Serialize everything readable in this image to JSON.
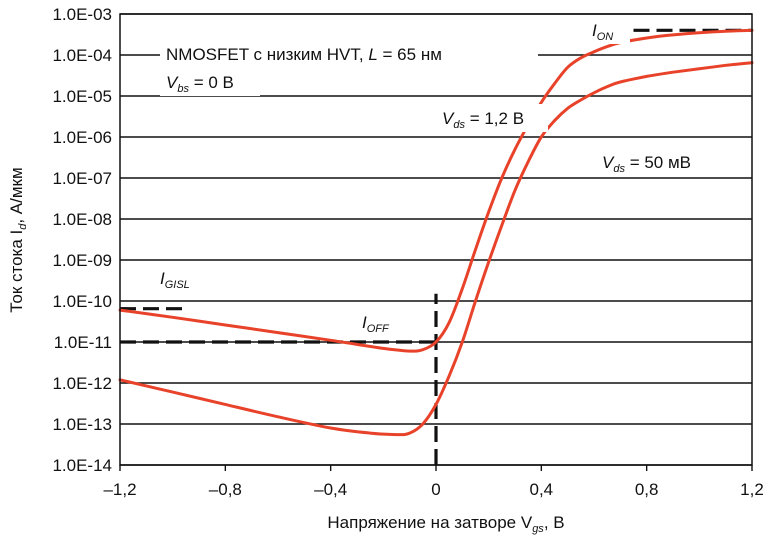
{
  "chart_data": {
    "type": "line",
    "y_scale": "log",
    "xlabel_main": "Напряжение на затворе V",
    "xlabel_sub": "gs",
    "xlabel_tail": ", В",
    "ylabel_main": "Ток стока I",
    "ylabel_sub": "d",
    "ylabel_tail": ", А/мкм",
    "xlim": [
      -1.2,
      1.2
    ],
    "ylim": [
      1e-14,
      0.001
    ],
    "x_ticks": [
      -1.2,
      -0.8,
      -0.4,
      0,
      0.4,
      0.8,
      1.2
    ],
    "x_tick_labels": [
      "–1,2",
      "–0,8",
      "–0,4",
      "0",
      "0,4",
      "0,8",
      "1,2"
    ],
    "y_ticks": [
      0.001,
      0.0001,
      1e-05,
      1e-06,
      1e-07,
      1e-08,
      1e-09,
      1e-10,
      1e-11,
      1e-12,
      1e-13,
      1e-14
    ],
    "y_tick_labels": [
      "1.0E-03",
      "1.0E-04",
      "1.0E-05",
      "1.0E-06",
      "1.0E-07",
      "1.0E-08",
      "1.0E-09",
      "1.0E-10",
      "1.0E-11",
      "1.0E-12",
      "1.0E-13",
      "1.0E-14"
    ],
    "grid": "horizontal",
    "series_color": "#e8432a",
    "series": [
      {
        "name": "Vds = 1,2 В",
        "x": [
          -1.2,
          -1.0,
          -0.8,
          -0.6,
          -0.4,
          -0.2,
          -0.1,
          -0.05,
          0.0,
          0.05,
          0.1,
          0.15,
          0.2,
          0.25,
          0.3,
          0.35,
          0.4,
          0.45,
          0.5,
          0.55,
          0.6,
          0.65,
          0.7,
          0.8,
          0.9,
          1.0,
          1.1,
          1.2
        ],
        "y": [
          6e-11,
          4e-11,
          2.6e-11,
          1.7e-11,
          1.1e-11,
          7e-12,
          6e-12,
          6.5e-12,
          1e-11,
          3e-11,
          2e-10,
          1.8e-09,
          1.5e-08,
          1e-07,
          5e-07,
          2e-06,
          7e-06,
          2e-05,
          5e-05,
          8.5e-05,
          0.00012,
          0.00016,
          0.0002,
          0.00026,
          0.00031,
          0.00035,
          0.00038,
          0.0004
        ]
      },
      {
        "name": "Vds = 50 мВ",
        "x": [
          -1.2,
          -1.0,
          -0.8,
          -0.6,
          -0.4,
          -0.25,
          -0.15,
          -0.1,
          -0.05,
          0.0,
          0.05,
          0.1,
          0.15,
          0.2,
          0.25,
          0.3,
          0.35,
          0.4,
          0.45,
          0.5,
          0.55,
          0.6,
          0.65,
          0.7,
          0.8,
          0.9,
          1.0,
          1.1,
          1.2
        ],
        "y": [
          1.2e-12,
          6e-13,
          3e-13,
          1.5e-13,
          8e-14,
          6e-14,
          5.5e-14,
          6e-14,
          1e-13,
          3e-13,
          1.5e-12,
          1e-11,
          1e-10,
          9e-10,
          7e-09,
          5e-08,
          2.5e-07,
          1e-06,
          2.5e-06,
          5e-06,
          8e-06,
          1.2e-05,
          1.7e-05,
          2.2e-05,
          3e-05,
          3.8e-05,
          4.6e-05,
          5.6e-05,
          6.5e-05
        ]
      }
    ],
    "reference_lines": [
      {
        "id": "ion",
        "y": 0.0004,
        "x_from": 0.75,
        "x_to": 1.2
      },
      {
        "id": "ioff",
        "y": 1e-11,
        "x_from": -1.2,
        "x_to": 0.0
      },
      {
        "id": "igisl",
        "y": 6.5e-11,
        "x_from": -1.2,
        "x_to": -0.95
      },
      {
        "id": "vzero",
        "x": 0.0,
        "y_from": 1e-14,
        "y_to": 1.5e-10
      }
    ],
    "annotations": {
      "device_line": "NMOSFET с низким HVT, ",
      "device_L": "L",
      "device_tail": " = 65 нм",
      "vbs_main": "V",
      "vbs_sub": "bs",
      "vbs_tail": " = 0 В",
      "vds1_main": "V",
      "vds1_sub": "ds",
      "vds1_tail": " = 1,2 В",
      "vds2_main": "V",
      "vds2_sub": "ds",
      "vds2_tail": " = 50 мВ",
      "ion_main": "I",
      "ion_sub": "ON",
      "ioff_main": "I",
      "ioff_sub": "OFF",
      "igisl_main": "I",
      "igisl_sub": "GISL"
    }
  }
}
